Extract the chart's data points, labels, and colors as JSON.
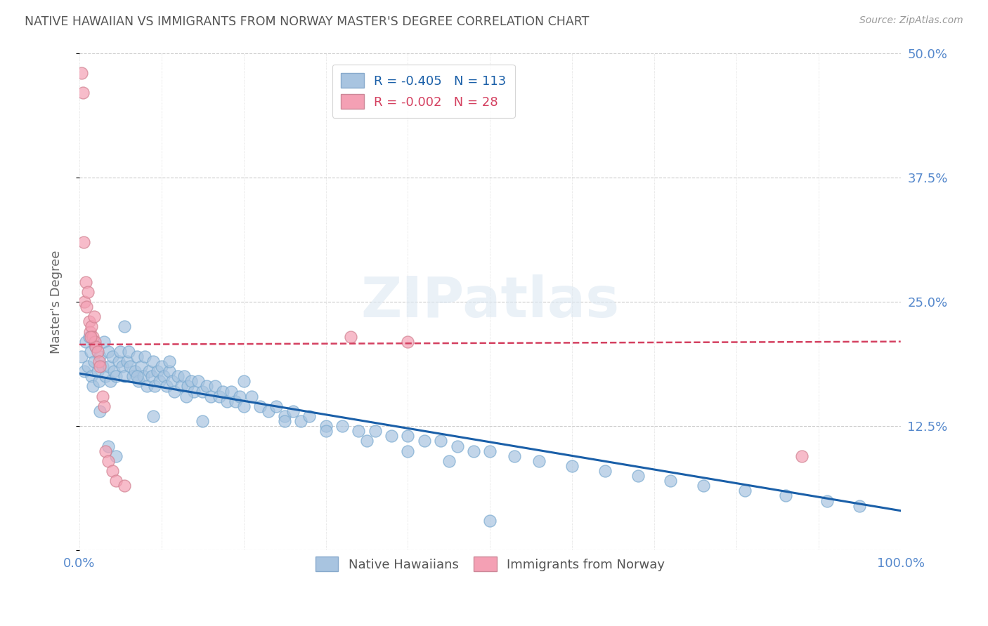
{
  "title": "NATIVE HAWAIIAN VS IMMIGRANTS FROM NORWAY MASTER'S DEGREE CORRELATION CHART",
  "source": "Source: ZipAtlas.com",
  "ylabel": "Master's Degree",
  "watermark": "ZIPatlas",
  "xlim": [
    0,
    1.0
  ],
  "ylim": [
    0,
    0.5
  ],
  "yticks": [
    0.0,
    0.125,
    0.25,
    0.375,
    0.5
  ],
  "ytick_labels": [
    "",
    "12.5%",
    "25.0%",
    "37.5%",
    "50.0%"
  ],
  "xtick_labels": [
    "0.0%",
    "",
    "",
    "",
    "",
    "",
    "",
    "",
    "",
    "",
    "100.0%"
  ],
  "legend_r1": "R = -0.405",
  "legend_n1": "N = 113",
  "legend_r2": "R = -0.002",
  "legend_n2": "N = 28",
  "blue_color": "#a8c4e0",
  "pink_color": "#f4a0b4",
  "line_blue": "#1a5fa8",
  "line_pink": "#d44060",
  "axis_color": "#5588cc",
  "grid_color": "#cccccc",
  "blue_scatter_x": [
    0.003,
    0.006,
    0.008,
    0.01,
    0.012,
    0.014,
    0.015,
    0.016,
    0.018,
    0.02,
    0.022,
    0.024,
    0.025,
    0.028,
    0.03,
    0.032,
    0.035,
    0.036,
    0.038,
    0.04,
    0.042,
    0.045,
    0.048,
    0.05,
    0.052,
    0.055,
    0.058,
    0.06,
    0.062,
    0.065,
    0.068,
    0.07,
    0.072,
    0.075,
    0.078,
    0.08,
    0.082,
    0.085,
    0.088,
    0.09,
    0.092,
    0.095,
    0.098,
    0.1,
    0.103,
    0.106,
    0.11,
    0.113,
    0.116,
    0.12,
    0.124,
    0.128,
    0.132,
    0.136,
    0.14,
    0.145,
    0.15,
    0.155,
    0.16,
    0.165,
    0.17,
    0.175,
    0.18,
    0.185,
    0.19,
    0.195,
    0.2,
    0.21,
    0.22,
    0.23,
    0.24,
    0.25,
    0.26,
    0.27,
    0.28,
    0.3,
    0.32,
    0.34,
    0.36,
    0.38,
    0.4,
    0.42,
    0.44,
    0.46,
    0.48,
    0.5,
    0.53,
    0.56,
    0.6,
    0.64,
    0.68,
    0.72,
    0.76,
    0.81,
    0.86,
    0.91,
    0.95,
    0.025,
    0.035,
    0.045,
    0.055,
    0.07,
    0.09,
    0.11,
    0.13,
    0.15,
    0.2,
    0.25,
    0.3,
    0.35,
    0.4,
    0.45,
    0.5
  ],
  "blue_scatter_y": [
    0.195,
    0.18,
    0.21,
    0.185,
    0.215,
    0.2,
    0.175,
    0.165,
    0.19,
    0.205,
    0.18,
    0.17,
    0.195,
    0.185,
    0.21,
    0.175,
    0.2,
    0.185,
    0.17,
    0.195,
    0.18,
    0.175,
    0.19,
    0.2,
    0.185,
    0.175,
    0.19,
    0.2,
    0.185,
    0.175,
    0.18,
    0.195,
    0.17,
    0.185,
    0.175,
    0.195,
    0.165,
    0.18,
    0.175,
    0.19,
    0.165,
    0.18,
    0.17,
    0.185,
    0.175,
    0.165,
    0.18,
    0.17,
    0.16,
    0.175,
    0.165,
    0.175,
    0.165,
    0.17,
    0.16,
    0.17,
    0.16,
    0.165,
    0.155,
    0.165,
    0.155,
    0.16,
    0.15,
    0.16,
    0.15,
    0.155,
    0.145,
    0.155,
    0.145,
    0.14,
    0.145,
    0.135,
    0.14,
    0.13,
    0.135,
    0.125,
    0.125,
    0.12,
    0.12,
    0.115,
    0.115,
    0.11,
    0.11,
    0.105,
    0.1,
    0.1,
    0.095,
    0.09,
    0.085,
    0.08,
    0.075,
    0.07,
    0.065,
    0.06,
    0.055,
    0.05,
    0.045,
    0.14,
    0.105,
    0.095,
    0.225,
    0.175,
    0.135,
    0.19,
    0.155,
    0.13,
    0.17,
    0.13,
    0.12,
    0.11,
    0.1,
    0.09,
    0.03
  ],
  "pink_scatter_x": [
    0.003,
    0.004,
    0.005,
    0.006,
    0.008,
    0.009,
    0.01,
    0.012,
    0.013,
    0.015,
    0.016,
    0.018,
    0.019,
    0.02,
    0.022,
    0.024,
    0.025,
    0.028,
    0.03,
    0.032,
    0.035,
    0.04,
    0.045,
    0.055,
    0.33,
    0.4,
    0.88,
    0.014
  ],
  "pink_scatter_y": [
    0.48,
    0.46,
    0.31,
    0.25,
    0.27,
    0.245,
    0.26,
    0.23,
    0.22,
    0.225,
    0.215,
    0.235,
    0.21,
    0.205,
    0.2,
    0.19,
    0.185,
    0.155,
    0.145,
    0.1,
    0.09,
    0.08,
    0.07,
    0.065,
    0.215,
    0.21,
    0.095,
    0.215
  ],
  "blue_line_x": [
    0.0,
    1.0
  ],
  "blue_line_y": [
    0.178,
    0.04
  ],
  "pink_line_x": [
    0.0,
    1.0
  ],
  "pink_line_y": [
    0.207,
    0.21
  ]
}
